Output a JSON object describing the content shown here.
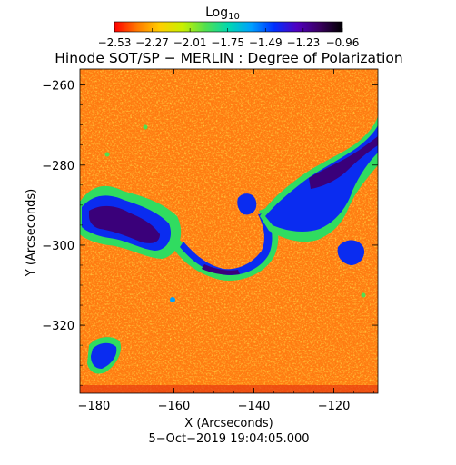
{
  "chart_data": {
    "type": "heatmap",
    "title": "Hinode SOT/SP − MERLIN : Degree of Polarization",
    "subtitle": "5−Oct−2019 19:04:05.000",
    "xlabel": "X (Arcseconds)",
    "ylabel": "Y (Arcseconds)",
    "xlim": [
      -183.5,
      -109
    ],
    "ylim": [
      -337,
      -256
    ],
    "xticks": [
      -180,
      -160,
      -140,
      -120
    ],
    "yticks": [
      -260,
      -280,
      -300,
      -320
    ],
    "xtick_labels": [
      "−180",
      "−160",
      "−140",
      "−120"
    ],
    "ytick_labels": [
      "−260",
      "−280",
      "−300",
      "−320"
    ],
    "colorbar": {
      "label_main": "Log",
      "label_sub": "10",
      "min": -2.53,
      "max": -0.96,
      "ticks": [
        -2.53,
        -2.27,
        -2.01,
        -1.75,
        -1.49,
        -1.23,
        -0.96
      ],
      "tick_labels": [
        "−2.53",
        "−2.27",
        "−2.01",
        "−1.75",
        "−1.49",
        "−1.23",
        "−0.96"
      ],
      "colormap": [
        "#ff0000",
        "#ff7a00",
        "#ffcf00",
        "#c8f000",
        "#50e050",
        "#00d8b0",
        "#00a0ff",
        "#0030ff",
        "#5000c0",
        "#3a0060",
        "#000000"
      ]
    },
    "background_value": -2.27,
    "features": [
      {
        "name": "western polarized patch",
        "x": [
          -183.5,
          -168
        ],
        "y": [
          -305,
          -286
        ],
        "value": -1.15
      },
      {
        "name": "arc lane",
        "x": [
          -168,
          -132
        ],
        "y": [
          -310,
          -290
        ],
        "value": -1.25
      },
      {
        "name": "northeastern lane",
        "x": [
          -140,
          -109
        ],
        "y": [
          -300,
          -266
        ],
        "value": -1.2
      },
      {
        "name": "southwestern patch",
        "x": [
          -181,
          -173
        ],
        "y": [
          -335,
          -322
        ],
        "value": -1.3
      }
    ]
  }
}
